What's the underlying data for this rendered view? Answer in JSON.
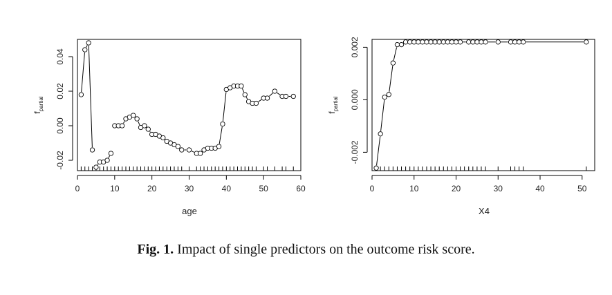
{
  "chart_data": [
    {
      "type": "line",
      "markers": "open-circle",
      "title": "",
      "xlabel": "age",
      "ylabel_main": "f",
      "ylabel_sub": "partial",
      "xlim": [
        0,
        60
      ],
      "ylim": [
        -0.026,
        0.05
      ],
      "xticks": [
        0,
        10,
        20,
        30,
        40,
        50,
        60
      ],
      "xtick_labels": [
        "0",
        "10",
        "20",
        "30",
        "40",
        "50",
        "60"
      ],
      "yticks": [
        -0.02,
        0.0,
        0.02,
        0.04
      ],
      "ytick_labels": [
        "-0.02",
        "0.00",
        "0.02",
        "0.04"
      ],
      "series": [
        {
          "name": "f_partial(age)",
          "x": [
            1,
            2,
            3,
            4,
            5,
            6,
            7,
            8,
            9,
            10,
            11,
            12,
            13,
            14,
            15,
            16,
            17,
            18,
            19,
            20,
            21,
            22,
            23,
            24,
            25,
            26,
            27,
            28,
            30,
            32,
            33,
            34,
            35,
            36,
            37,
            38,
            39,
            40,
            41,
            42,
            43,
            44,
            45,
            46,
            47,
            48,
            50,
            51,
            53,
            55,
            56,
            58
          ],
          "y": [
            0.018,
            0.044,
            0.048,
            -0.014,
            -0.024,
            -0.021,
            -0.021,
            -0.02,
            -0.016,
            0.0,
            0.0,
            0.0,
            0.004,
            0.005,
            0.006,
            0.004,
            -0.001,
            0.0,
            -0.002,
            -0.005,
            -0.005,
            -0.006,
            -0.007,
            -0.009,
            -0.01,
            -0.011,
            -0.012,
            -0.014,
            -0.014,
            -0.016,
            -0.016,
            -0.014,
            -0.013,
            -0.013,
            -0.013,
            -0.012,
            0.001,
            0.021,
            0.022,
            0.023,
            0.023,
            0.023,
            0.018,
            0.014,
            0.013,
            0.013,
            0.016,
            0.016,
            0.02,
            0.017,
            0.017,
            0.017
          ],
          "gaps_after_x": [
            4,
            9,
            37
          ]
        }
      ],
      "rug_x": [
        1,
        2,
        3,
        4,
        5,
        6,
        7,
        8,
        9,
        10,
        11,
        12,
        13,
        14,
        15,
        16,
        17,
        18,
        19,
        20,
        21,
        22,
        23,
        24,
        25,
        26,
        27,
        28,
        30,
        32,
        33,
        34,
        35,
        36,
        37,
        38,
        39,
        40,
        41,
        42,
        43,
        44,
        45,
        46,
        47,
        48,
        50,
        51,
        53,
        55,
        56,
        58
      ]
    },
    {
      "type": "line",
      "markers": "open-circle",
      "title": "",
      "xlabel": "X4",
      "ylabel_main": "f",
      "ylabel_sub": "partial",
      "xlim": [
        0,
        53
      ],
      "ylim": [
        -0.0027,
        0.0023
      ],
      "xticks": [
        0,
        10,
        20,
        30,
        40,
        50
      ],
      "xtick_labels": [
        "0",
        "10",
        "20",
        "30",
        "40",
        "50"
      ],
      "yticks": [
        -0.002,
        0.0,
        0.002
      ],
      "ytick_labels": [
        "-0.002",
        "0.000",
        "0.002"
      ],
      "series": [
        {
          "name": "f_partial(X4)",
          "x": [
            1,
            2,
            3,
            4,
            5,
            6,
            7,
            8,
            9,
            10,
            11,
            12,
            13,
            14,
            15,
            16,
            17,
            18,
            19,
            20,
            21,
            23,
            24,
            25,
            26,
            27,
            30,
            33,
            34,
            35,
            36,
            51
          ],
          "y": [
            -0.0026,
            -0.0013,
            0.0001,
            0.0002,
            0.0014,
            0.0021,
            0.0021,
            0.0022,
            0.0022,
            0.0022,
            0.0022,
            0.0022,
            0.0022,
            0.0022,
            0.0022,
            0.0022,
            0.0022,
            0.0022,
            0.0022,
            0.0022,
            0.0022,
            0.0022,
            0.0022,
            0.0022,
            0.0022,
            0.0022,
            0.0022,
            0.0022,
            0.0022,
            0.0022,
            0.0022,
            0.0022
          ],
          "gaps_after_x": []
        }
      ],
      "rug_x": [
        1,
        2,
        3,
        4,
        5,
        6,
        7,
        8,
        9,
        10,
        11,
        12,
        13,
        14,
        15,
        16,
        17,
        18,
        19,
        20,
        21,
        22,
        23,
        24,
        25,
        26,
        27,
        30,
        33,
        34,
        35,
        36,
        51
      ]
    }
  ],
  "caption": {
    "label": "Fig. 1.",
    "text": " Impact of single predictors on the outcome risk score."
  }
}
